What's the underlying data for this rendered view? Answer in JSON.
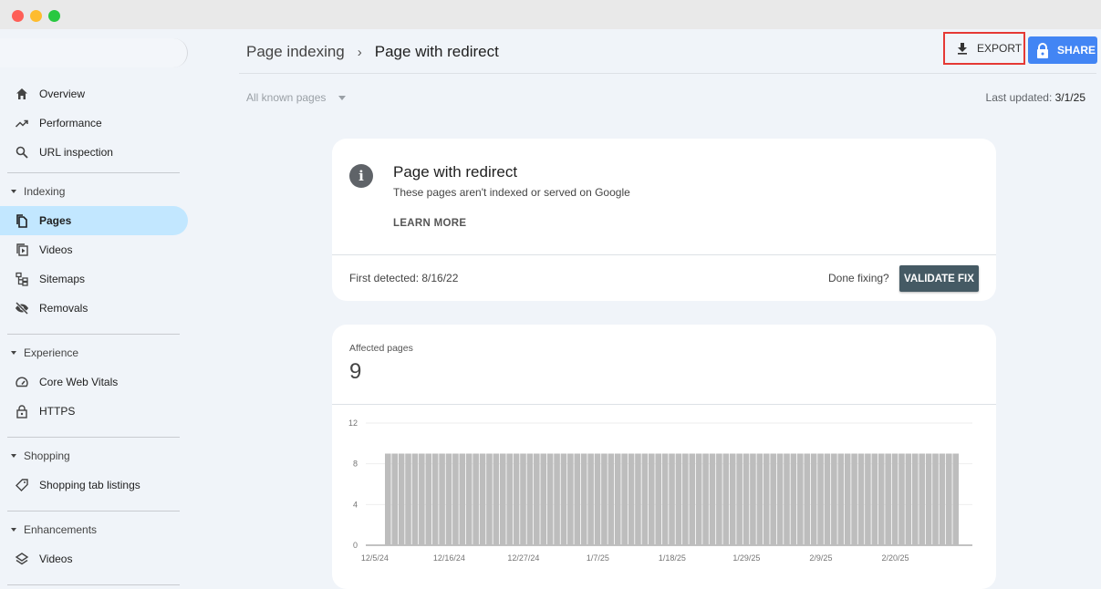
{
  "window": {
    "controls": [
      "close",
      "minimize",
      "maximize"
    ]
  },
  "sidebar": {
    "items_top": [
      {
        "label": "Overview",
        "icon": "home-icon"
      },
      {
        "label": "Performance",
        "icon": "trending-up-icon"
      },
      {
        "label": "URL inspection",
        "icon": "search-icon"
      }
    ],
    "sections": [
      {
        "title": "Indexing",
        "items": [
          {
            "label": "Pages",
            "icon": "pages-icon",
            "active": true
          },
          {
            "label": "Videos",
            "icon": "video-page-icon"
          },
          {
            "label": "Sitemaps",
            "icon": "sitemap-icon"
          },
          {
            "label": "Removals",
            "icon": "eye-off-icon"
          }
        ]
      },
      {
        "title": "Experience",
        "items": [
          {
            "label": "Core Web Vitals",
            "icon": "speedometer-icon"
          },
          {
            "label": "HTTPS",
            "icon": "lock-icon"
          }
        ]
      },
      {
        "title": "Shopping",
        "items": [
          {
            "label": "Shopping tab listings",
            "icon": "tag-icon"
          }
        ]
      },
      {
        "title": "Enhancements",
        "items": [
          {
            "label": "Videos",
            "icon": "layers-icon"
          }
        ]
      }
    ]
  },
  "header": {
    "breadcrumb_parent": "Page indexing",
    "breadcrumb_current": "Page with redirect",
    "export_label": "EXPORT",
    "share_label": "SHARE"
  },
  "filter": {
    "selected": "All known pages"
  },
  "last_updated_label": "Last updated:",
  "last_updated_value": "3/1/25",
  "info_card": {
    "title": "Page with redirect",
    "subtitle": "These pages aren't indexed or served on Google",
    "learn_more": "LEARN MORE",
    "first_detected": "First detected: 8/16/22",
    "done_fixing": "Done fixing?",
    "validate": "VALIDATE FIX"
  },
  "affected": {
    "label": "Affected pages",
    "value": "9"
  },
  "colors": {
    "accent": "#1a73e8",
    "share": "#4285f4",
    "active_nav": "#c2e7ff",
    "bar": "#bdbdbd",
    "validate_bg": "#455a64",
    "export_highlight": "#e53935"
  },
  "chart_data": {
    "type": "bar",
    "title": "",
    "xlabel": "",
    "ylabel": "",
    "ylim": [
      0,
      12
    ],
    "yticks": [
      "0",
      "4",
      "8",
      "12"
    ],
    "grid": true,
    "xticks": [
      "12/5/24",
      "12/16/24",
      "12/27/24",
      "1/7/25",
      "1/18/25",
      "1/29/25",
      "2/9/25",
      "2/20/25"
    ],
    "x": [
      "12/7/24",
      "12/8/24",
      "12/9/24",
      "12/10/24",
      "12/11/24",
      "12/12/24",
      "12/13/24",
      "12/14/24",
      "12/15/24",
      "12/16/24",
      "12/17/24",
      "12/18/24",
      "12/19/24",
      "12/20/24",
      "12/21/24",
      "12/22/24",
      "12/23/24",
      "12/24/24",
      "12/25/24",
      "12/26/24",
      "12/27/24",
      "12/28/24",
      "12/29/24",
      "12/30/24",
      "12/31/24",
      "1/1/25",
      "1/2/25",
      "1/3/25",
      "1/4/25",
      "1/5/25",
      "1/6/25",
      "1/7/25",
      "1/8/25",
      "1/9/25",
      "1/10/25",
      "1/11/25",
      "1/12/25",
      "1/13/25",
      "1/14/25",
      "1/15/25",
      "1/16/25",
      "1/17/25",
      "1/18/25",
      "1/19/25",
      "1/20/25",
      "1/21/25",
      "1/22/25",
      "1/23/25",
      "1/24/25",
      "1/25/25",
      "1/26/25",
      "1/27/25",
      "1/28/25",
      "1/29/25",
      "1/30/25",
      "1/31/25",
      "2/1/25",
      "2/2/25",
      "2/3/25",
      "2/4/25",
      "2/5/25",
      "2/6/25",
      "2/7/25",
      "2/8/25",
      "2/9/25",
      "2/10/25",
      "2/11/25",
      "2/12/25",
      "2/13/25",
      "2/14/25",
      "2/15/25",
      "2/16/25",
      "2/17/25",
      "2/18/25",
      "2/19/25",
      "2/20/25",
      "2/21/25",
      "2/22/25",
      "2/23/25",
      "2/24/25",
      "2/25/25",
      "2/26/25",
      "2/27/25",
      "2/28/25",
      "3/1/25"
    ],
    "values": [
      9,
      9,
      9,
      9,
      9,
      9,
      9,
      9,
      9,
      9,
      9,
      9,
      9,
      9,
      9,
      9,
      9,
      9,
      9,
      9,
      9,
      9,
      9,
      9,
      9,
      9,
      9,
      9,
      9,
      9,
      9,
      9,
      9,
      9,
      9,
      9,
      9,
      9,
      9,
      9,
      9,
      9,
      9,
      9,
      9,
      9,
      9,
      9,
      9,
      9,
      9,
      9,
      9,
      9,
      9,
      9,
      9,
      9,
      9,
      9,
      9,
      9,
      9,
      9,
      9,
      9,
      9,
      9,
      9,
      9,
      9,
      9,
      9,
      9,
      9,
      9,
      9,
      9,
      9,
      9,
      9,
      9,
      9,
      9,
      9
    ]
  }
}
